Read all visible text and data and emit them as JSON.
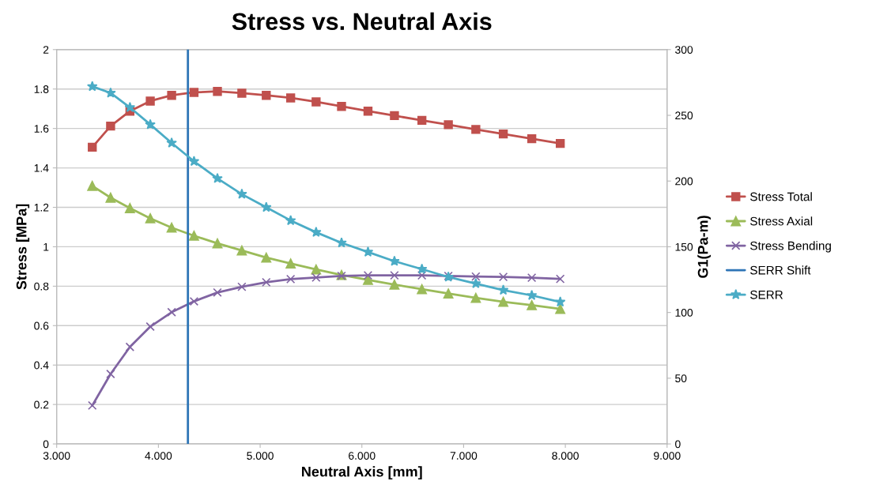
{
  "chart_data": {
    "type": "line",
    "title": "Stress vs. Neutral Axis",
    "xlabel": "Neutral Axis [mm]",
    "ylabel": "Stress [MPa]",
    "y2label": "G1(Pa-m)",
    "x": [
      3.35,
      3.53,
      3.72,
      3.92,
      4.13,
      4.35,
      4.58,
      4.82,
      5.06,
      5.3,
      5.55,
      5.8,
      6.06,
      6.32,
      6.59,
      6.85,
      7.12,
      7.39,
      7.67,
      7.95
    ],
    "series": [
      {
        "name": "Stress Total",
        "color": "#c0504d",
        "marker": "square",
        "values": [
          1.505,
          1.612,
          1.688,
          1.739,
          1.768,
          1.783,
          1.788,
          1.779,
          1.768,
          1.755,
          1.735,
          1.712,
          1.688,
          1.665,
          1.641,
          1.619,
          1.595,
          1.572,
          1.548,
          1.524
        ]
      },
      {
        "name": "Stress Axial",
        "color": "#9bbb59",
        "marker": "triangle",
        "values": [
          1.309,
          1.249,
          1.196,
          1.144,
          1.097,
          1.056,
          1.017,
          0.981,
          0.945,
          0.915,
          0.885,
          0.857,
          0.832,
          0.808,
          0.785,
          0.763,
          0.741,
          0.721,
          0.704,
          0.685
        ]
      },
      {
        "name": "Stress Bending",
        "color": "#8064a2",
        "marker": "cross",
        "values": [
          0.195,
          0.355,
          0.492,
          0.595,
          0.668,
          0.723,
          0.768,
          0.797,
          0.82,
          0.836,
          0.844,
          0.852,
          0.855,
          0.855,
          0.855,
          0.852,
          0.849,
          0.847,
          0.843,
          0.837
        ]
      },
      {
        "name": "SERR Shift",
        "color": "#2e75b6",
        "marker": "none",
        "axis": "y2",
        "x": [
          4.29,
          4.29
        ],
        "values": [
          0,
          300
        ]
      },
      {
        "name": "SERR",
        "color": "#4bacc6",
        "marker": "star",
        "axis": "y2",
        "values": [
          272,
          267,
          256,
          243,
          229,
          215,
          202,
          190,
          180,
          170,
          161,
          153,
          146,
          139,
          133,
          127,
          122,
          117,
          113,
          108
        ]
      }
    ],
    "xlim": [
      3,
      9
    ],
    "xticks": [
      {
        "value": 3,
        "label": "3.000"
      },
      {
        "value": 4,
        "label": "4.000"
      },
      {
        "value": 5,
        "label": "5.000"
      },
      {
        "value": 6,
        "label": "6.000"
      },
      {
        "value": 7,
        "label": "7.000"
      },
      {
        "value": 8,
        "label": "8.000"
      },
      {
        "value": 9,
        "label": "9.000"
      }
    ],
    "ylim": [
      0,
      2
    ],
    "yticks": [
      0,
      0.2,
      0.4,
      0.6,
      0.8,
      1,
      1.2,
      1.4,
      1.6,
      1.8,
      2
    ],
    "y2lim": [
      0,
      300
    ],
    "y2ticks": [
      0,
      50,
      100,
      150,
      200,
      250,
      300
    ],
    "grid": "y",
    "legend": "right",
    "line_style": "solid"
  }
}
